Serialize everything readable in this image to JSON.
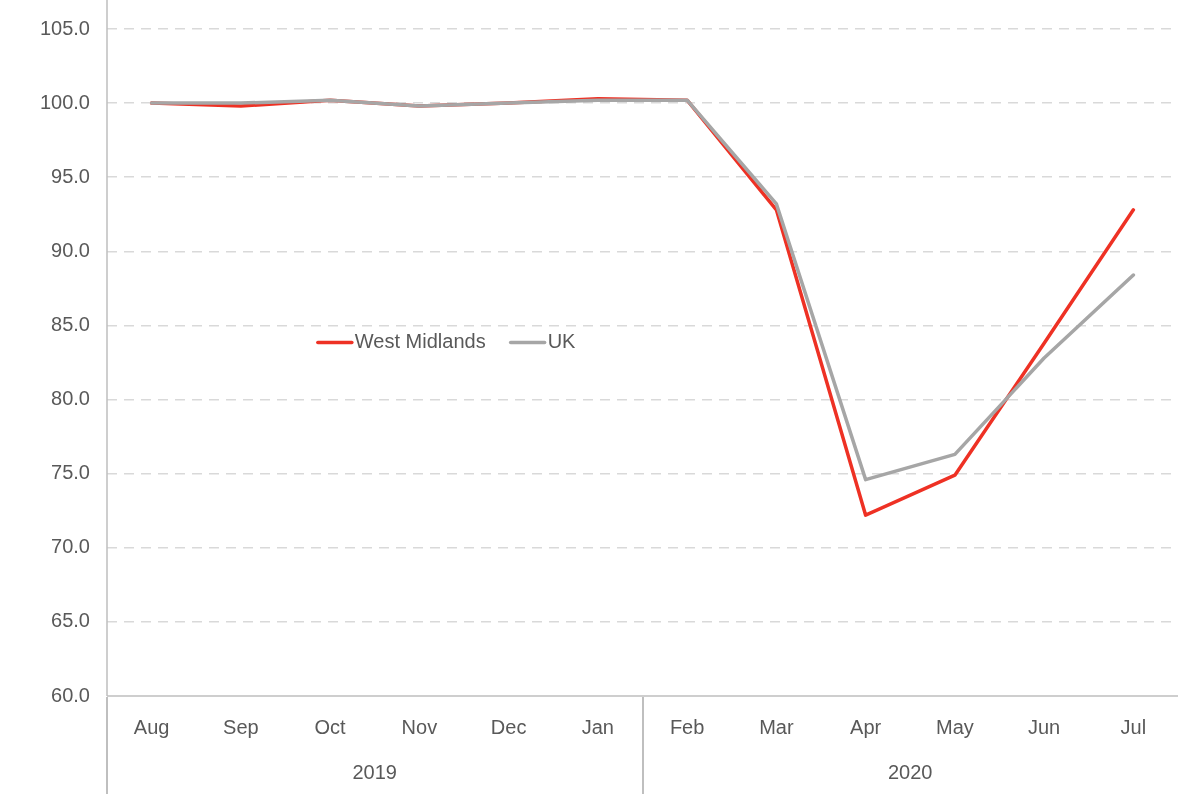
{
  "chart_data": {
    "type": "line",
    "categories": [
      "Aug",
      "Sep",
      "Oct",
      "Nov",
      "Dec",
      "Jan",
      "Feb",
      "Mar",
      "Apr",
      "May",
      "Jun",
      "Jul"
    ],
    "series": [
      {
        "name": "West Midlands",
        "color": "#ee3124",
        "values": [
          100.0,
          99.8,
          100.2,
          99.8,
          100.0,
          100.3,
          100.2,
          92.8,
          72.2,
          74.9,
          83.8,
          92.8
        ]
      },
      {
        "name": "UK",
        "color": "#a6a6a6",
        "values": [
          100.0,
          100.0,
          100.2,
          99.8,
          100.0,
          100.2,
          100.2,
          93.2,
          74.6,
          76.3,
          82.8,
          88.4
        ]
      }
    ],
    "ylim": [
      60,
      105
    ],
    "yticks": [
      {
        "value": 60,
        "label": "60.0"
      },
      {
        "value": 65,
        "label": "65.0"
      },
      {
        "value": 70,
        "label": "70.0"
      },
      {
        "value": 75,
        "label": "75.0"
      },
      {
        "value": 80,
        "label": "80.0"
      },
      {
        "value": 85,
        "label": "85.0"
      },
      {
        "value": 90,
        "label": "90.0"
      },
      {
        "value": 95,
        "label": "95.0"
      },
      {
        "value": 100,
        "label": "100.0"
      },
      {
        "value": 105,
        "label": "105.0"
      }
    ],
    "annotations": [
      "2019",
      "2020"
    ],
    "grid": "y",
    "legend": "left",
    "marker": "none",
    "line_style": "solid"
  }
}
